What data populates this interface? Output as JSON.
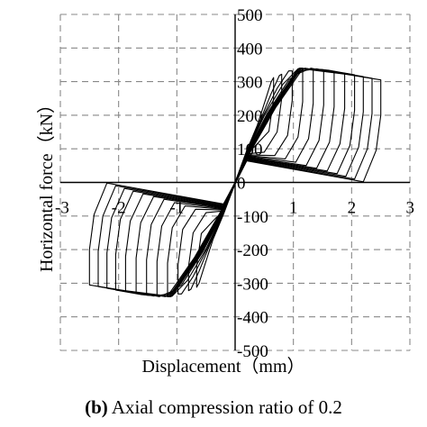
{
  "chart_data": {
    "type": "line",
    "title": "",
    "xlabel": "Displacement（mm）",
    "ylabel": "Horizontal force（kN）",
    "xlim": [
      -3,
      3
    ],
    "ylim": [
      -500,
      500
    ],
    "x_ticks": [
      -3,
      -2,
      -1,
      0,
      1,
      2,
      3
    ],
    "x_tick_labels": [
      "-3",
      "-2",
      "-1",
      "0",
      "1",
      "2",
      "3"
    ],
    "y_ticks": [
      500,
      400,
      300,
      200,
      100,
      0,
      -100,
      -200,
      -300,
      -400,
      -500
    ],
    "y_tick_labels": [
      "500",
      "400",
      "300",
      "200",
      "100",
      "0",
      "-100",
      "-200",
      "-300",
      "-400",
      "-500"
    ],
    "grid": true,
    "grid_style": "dashed",
    "line_color": "#000000",
    "series": [
      {
        "x": [
          0,
          0.2,
          0.38,
          0.52,
          0.62,
          0.66,
          0.66,
          0.58,
          0.32,
          0.2,
          -0.2,
          -0.38,
          -0.52,
          -0.62,
          -0.66,
          -0.66,
          -0.58,
          -0.32,
          -0.2,
          0
        ],
        "y": [
          0,
          95,
          170,
          245,
          300,
          312,
          250,
          152,
          104,
          90,
          -95,
          -170,
          -245,
          -300,
          -312,
          -250,
          -152,
          -104,
          -90,
          0
        ]
      },
      {
        "x": [
          0,
          0.2,
          0.42,
          0.62,
          0.76,
          0.8,
          0.8,
          0.72,
          0.5,
          0.2,
          -0.2,
          -0.42,
          -0.62,
          -0.76,
          -0.8,
          -0.8,
          -0.72,
          -0.5,
          -0.2,
          0
        ],
        "y": [
          0,
          92,
          180,
          265,
          318,
          322,
          250,
          150,
          90,
          85,
          -92,
          -180,
          -265,
          -318,
          -322,
          -250,
          -150,
          -90,
          -85,
          0
        ]
      },
      {
        "x": [
          0,
          0.2,
          0.46,
          0.72,
          0.92,
          0.98,
          0.98,
          0.9,
          0.68,
          0.2,
          -0.2,
          -0.46,
          -0.72,
          -0.92,
          -0.98,
          -0.98,
          -0.9,
          -0.68,
          -0.2,
          0
        ],
        "y": [
          0,
          90,
          190,
          280,
          332,
          332,
          245,
          140,
          80,
          82,
          -90,
          -190,
          -280,
          -332,
          -332,
          -245,
          -140,
          -80,
          -82,
          0
        ]
      },
      {
        "x": [
          0,
          0.2,
          0.5,
          0.82,
          1.08,
          1.16,
          1.16,
          1.08,
          0.86,
          0.2,
          -0.2,
          -0.5,
          -0.82,
          -1.08,
          -1.16,
          -1.16,
          -1.08,
          -0.86,
          -0.2,
          0
        ],
        "y": [
          0,
          88,
          198,
          292,
          338,
          336,
          240,
          135,
          70,
          80,
          -88,
          -198,
          -292,
          -338,
          -336,
          -240,
          -135,
          -70,
          -80,
          0
        ]
      },
      {
        "x": [
          0,
          0.2,
          0.55,
          0.92,
          1.2,
          1.34,
          1.34,
          1.26,
          1.04,
          0.2,
          -0.2,
          -0.55,
          -0.92,
          -1.2,
          -1.34,
          -1.34,
          -1.26,
          -1.04,
          -0.2,
          0
        ],
        "y": [
          0,
          86,
          205,
          305,
          340,
          335,
          235,
          130,
          60,
          78,
          -86,
          -205,
          -305,
          -340,
          -335,
          -235,
          -130,
          -60,
          -78,
          0
        ]
      },
      {
        "x": [
          0,
          0.2,
          0.58,
          1.0,
          1.3,
          1.52,
          1.52,
          1.44,
          1.22,
          0.2,
          -0.2,
          -0.58,
          -1.0,
          -1.3,
          -1.52,
          -1.52,
          -1.44,
          -1.22,
          -0.2,
          0
        ],
        "y": [
          0,
          84,
          210,
          318,
          340,
          332,
          230,
          125,
          50,
          76,
          -84,
          -210,
          -318,
          -340,
          -332,
          -230,
          -125,
          -50,
          -76,
          0
        ]
      },
      {
        "x": [
          0,
          0.2,
          0.6,
          1.05,
          1.4,
          1.7,
          1.7,
          1.62,
          1.4,
          0.2,
          -0.2,
          -0.6,
          -1.05,
          -1.4,
          -1.7,
          -1.7,
          -1.62,
          -1.4,
          -0.2,
          0
        ],
        "y": [
          0,
          82,
          212,
          330,
          338,
          328,
          225,
          120,
          42,
          74,
          -82,
          -212,
          -330,
          -338,
          -328,
          -225,
          -120,
          -42,
          -74,
          0
        ]
      },
      {
        "x": [
          0,
          0.2,
          0.62,
          1.08,
          1.5,
          1.88,
          1.88,
          1.8,
          1.58,
          0.2,
          -0.2,
          -0.62,
          -1.08,
          -1.5,
          -1.88,
          -1.88,
          -1.8,
          -1.58,
          -0.2,
          0
        ],
        "y": [
          0,
          80,
          215,
          338,
          336,
          324,
          220,
          115,
          34,
          72,
          -80,
          -215,
          -338,
          -336,
          -324,
          -220,
          -115,
          -34,
          -72,
          0
        ]
      },
      {
        "x": [
          0,
          0.2,
          0.64,
          1.1,
          1.6,
          2.05,
          2.05,
          1.97,
          1.75,
          0.2,
          -0.2,
          -0.64,
          -1.1,
          -1.6,
          -2.05,
          -2.05,
          -1.97,
          -1.75,
          -0.2,
          0
        ],
        "y": [
          0,
          78,
          218,
          340,
          334,
          320,
          215,
          110,
          26,
          70,
          -78,
          -218,
          -340,
          -334,
          -320,
          -215,
          -110,
          -26,
          -70,
          0
        ]
      },
      {
        "x": [
          0,
          0.2,
          0.66,
          1.12,
          1.7,
          2.2,
          2.2,
          2.12,
          1.9,
          0.2,
          -0.2,
          -0.66,
          -1.12,
          -1.7,
          -2.2,
          -2.2,
          -2.12,
          -1.9,
          -0.2,
          0
        ],
        "y": [
          0,
          76,
          220,
          340,
          330,
          315,
          210,
          105,
          18,
          68,
          -76,
          -220,
          -340,
          -330,
          -315,
          -210,
          -105,
          -18,
          -68,
          0
        ]
      },
      {
        "x": [
          0,
          0.2,
          0.68,
          1.14,
          1.8,
          2.35,
          2.35,
          2.27,
          2.05,
          0.2,
          -0.2,
          -0.68,
          -1.14,
          -1.8,
          -2.35,
          -2.35,
          -2.27,
          -2.05,
          -0.2,
          0
        ],
        "y": [
          0,
          74,
          222,
          340,
          326,
          310,
          205,
          100,
          10,
          66,
          -74,
          -222,
          -340,
          -326,
          -310,
          -205,
          -100,
          -10,
          -66,
          0
        ]
      },
      {
        "x": [
          0,
          0.2,
          0.7,
          1.16,
          1.9,
          2.5,
          2.5,
          2.42,
          2.2,
          0.2,
          -0.2,
          -0.7,
          -1.16,
          -1.9,
          -2.5,
          -2.5,
          -2.42,
          -2.2,
          -0.2,
          0
        ],
        "y": [
          0,
          72,
          224,
          338,
          322,
          305,
          200,
          95,
          2,
          64,
          -72,
          -224,
          -338,
          -322,
          -305,
          -200,
          -95,
          -2,
          -64,
          0
        ]
      }
    ]
  },
  "caption": {
    "label": "(b)",
    "text": " Axial compression ratio of 0.2"
  }
}
